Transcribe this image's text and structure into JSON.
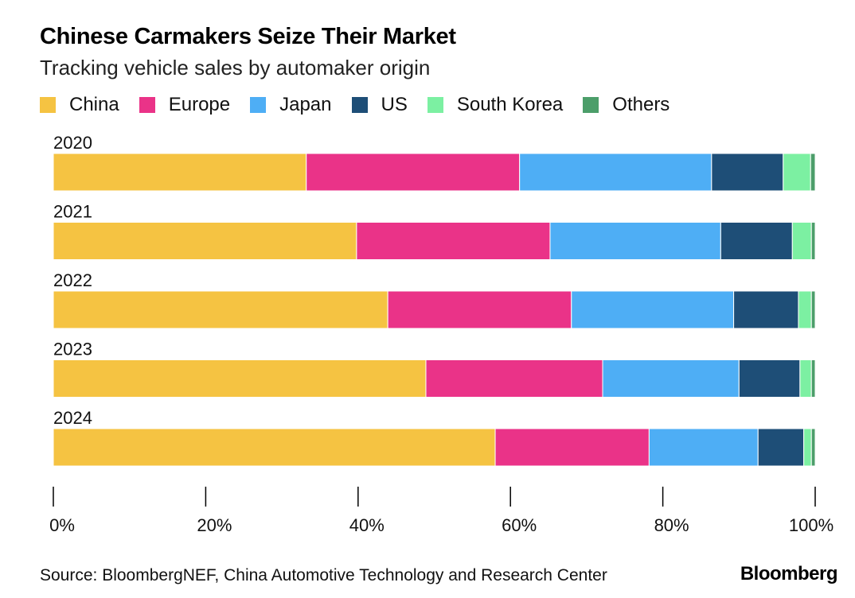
{
  "title": "Chinese Carmakers Seize Their Market",
  "subtitle": "Tracking vehicle sales by automaker origin",
  "source": "Source: BloombergNEF, China Automotive Technology and Research Center",
  "brand": "Bloomberg",
  "chart_data": {
    "type": "bar",
    "orientation": "horizontal",
    "stacked": true,
    "categories": [
      "2020",
      "2021",
      "2022",
      "2023",
      "2024"
    ],
    "series": [
      {
        "name": "China",
        "color": "#f5c342",
        "values": [
          33.2,
          39.8,
          43.9,
          48.9,
          58.0
        ]
      },
      {
        "name": "Europe",
        "color": "#ea3388",
        "values": [
          28.0,
          25.4,
          24.1,
          23.2,
          20.2
        ]
      },
      {
        "name": "Japan",
        "color": "#4eaef5",
        "values": [
          25.2,
          22.4,
          21.3,
          17.9,
          14.3
        ]
      },
      {
        "name": "US",
        "color": "#1e4e77",
        "values": [
          9.4,
          9.4,
          8.5,
          8.0,
          6.0
        ]
      },
      {
        "name": "South Korea",
        "color": "#7cf0a2",
        "values": [
          3.6,
          2.5,
          1.7,
          1.5,
          1.0
        ]
      },
      {
        "name": "Others",
        "color": "#4c9e6a",
        "values": [
          0.6,
          0.5,
          0.5,
          0.5,
          0.5
        ]
      }
    ],
    "xlim": [
      0,
      100
    ],
    "xticks": [
      "0%",
      "20%",
      "40%",
      "60%",
      "80%",
      "100%"
    ],
    "legend_position": "top",
    "grid": false
  }
}
